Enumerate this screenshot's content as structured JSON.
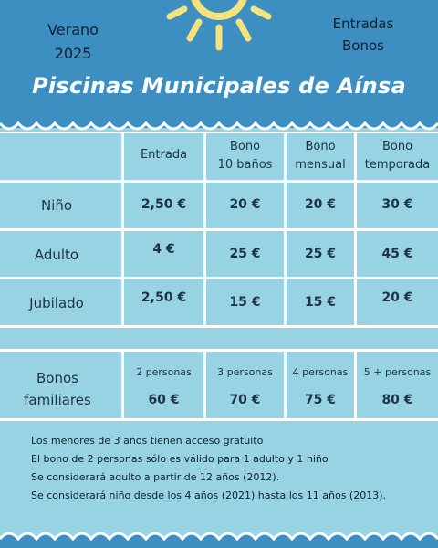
{
  "header": {
    "left_lines": [
      "Verano",
      "2025"
    ],
    "right_lines": [
      "Entradas",
      "Bonos"
    ],
    "title": "Piscinas Municipales de Aínsa"
  },
  "prices": {
    "columns": [
      [
        "Entrada"
      ],
      [
        "Bono",
        "10 baños"
      ],
      [
        "Bono",
        "mensual"
      ],
      [
        "Bono",
        "temporada"
      ]
    ],
    "rows": [
      {
        "label": "Niño",
        "values": [
          "2,50 €",
          "20 €",
          "20 €",
          "30 €"
        ]
      },
      {
        "label": "Adulto",
        "values": [
          "4 €",
          "25 €",
          "25 €",
          "45 €"
        ]
      },
      {
        "label": "Jubilado",
        "values": [
          "2,50 €",
          "15 €",
          "15 €",
          "20 €"
        ]
      }
    ]
  },
  "family": {
    "label_lines": [
      "Bonos",
      "familiares"
    ],
    "options": [
      {
        "persons": "2 personas",
        "price": "60 €"
      },
      {
        "persons": "3 personas",
        "price": "70 €"
      },
      {
        "persons": "4 personas",
        "price": "75 €"
      },
      {
        "persons": "5 + personas",
        "price": "80 €"
      }
    ]
  },
  "notes": [
    "Los menores de 3 años tienen acceso gratuito",
    "El bono de 2 personas sólo es válido para 1 adulto y 1 niño",
    "Se considerará adulto a partir de 12 años (2012).",
    "Se considerará niño desde los 4 años (2021) hasta los 11 años (2013)."
  ],
  "colors": {
    "header_blue": "#3d8fc2",
    "background": "#97d3e2",
    "sun": "#f6e27a",
    "text": "#1e3446"
  }
}
